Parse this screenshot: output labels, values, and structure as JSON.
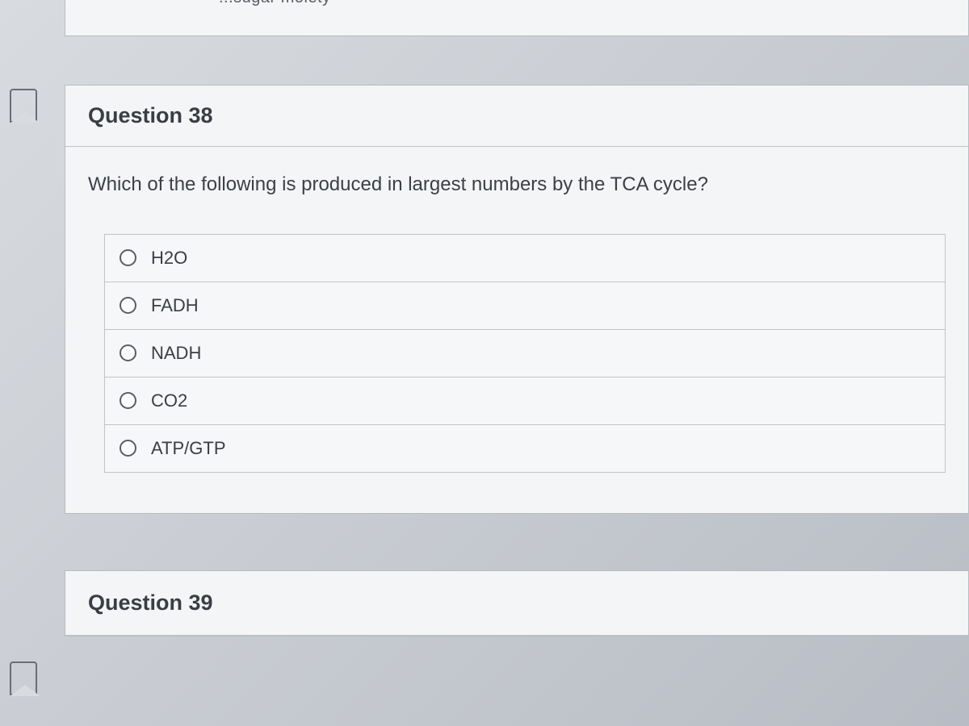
{
  "partial_top": {
    "visible_text": "...sugar moiety"
  },
  "questions": [
    {
      "number": "38",
      "title": "Question 38",
      "prompt": "Which of the following is produced in largest numbers by the TCA cycle?",
      "options": [
        {
          "label": "H2O"
        },
        {
          "label": "FADH"
        },
        {
          "label": "NADH"
        },
        {
          "label": "CO2"
        },
        {
          "label": "ATP/GTP"
        }
      ]
    },
    {
      "number": "39",
      "title": "Question 39"
    }
  ],
  "colors": {
    "card_bg": "#f4f5f6",
    "border": "#b8bcc0",
    "text_primary": "#3a3e44",
    "text_body": "#3c4046",
    "radio_border": "#5a5e64"
  }
}
